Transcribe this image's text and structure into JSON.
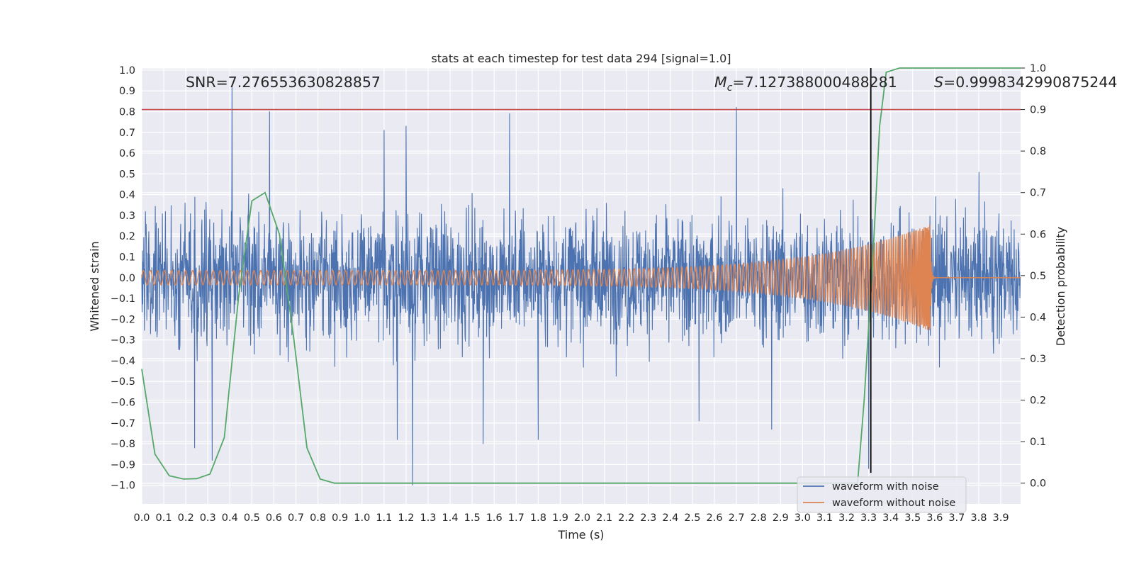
{
  "chart_data": {
    "type": "line",
    "title": "stats at each timestep for test data 294 [signal=1.0]",
    "xlabel": "Time (s)",
    "ylabel_left": "Whitened strain",
    "ylabel_right": "Detection probability",
    "xlim": [
      0.0,
      3.99
    ],
    "ylim_left": [
      -1.09,
      1.01
    ],
    "ylim_right": [
      -0.05,
      1.0
    ],
    "grid": true,
    "x_ticks": [
      "0.0",
      "0.1",
      "0.2",
      "0.3",
      "0.4",
      "0.5",
      "0.6",
      "0.7",
      "0.8",
      "0.9",
      "1.0",
      "1.1",
      "1.2",
      "1.3",
      "1.4",
      "1.5",
      "1.6",
      "1.7",
      "1.8",
      "1.9",
      "2.0",
      "2.1",
      "2.2",
      "2.3",
      "2.4",
      "2.5",
      "2.6",
      "2.7",
      "2.8",
      "2.9",
      "3.0",
      "3.1",
      "3.2",
      "3.3",
      "3.4",
      "3.5",
      "3.6",
      "3.7",
      "3.8",
      "3.9"
    ],
    "y_ticks_left": [
      "1.0",
      "0.9",
      "0.8",
      "0.7",
      "0.6",
      "0.5",
      "0.4",
      "0.3",
      "0.2",
      "0.1",
      "0.0",
      "−0.1",
      "−0.2",
      "−0.3",
      "−0.4",
      "−0.5",
      "−0.6",
      "−0.7",
      "−0.8",
      "−0.9",
      "−1.0"
    ],
    "y_ticks_right": [
      "1.0",
      "0.9",
      "0.8",
      "0.7",
      "0.6",
      "0.5",
      "0.4",
      "0.3",
      "0.2",
      "0.1",
      "0.0"
    ],
    "threshold_line": {
      "y_right": 0.9,
      "color": "#c44e52"
    },
    "vertical_marker": {
      "x": 3.31,
      "color": "#000000"
    },
    "annotations": {
      "snr": "SNR=7.276553630828857",
      "mc_symbol": "M",
      "mc_sub": "c",
      "mc_value": "=7.127388000488281",
      "s_symbol": "S",
      "s_value": "=0.9998342990875244"
    },
    "series": [
      {
        "name": "waveform with noise",
        "color": "#4c72b0",
        "axis": "left",
        "note": "dense whitened noise, amplitude roughly ±0.3 with spikes to ±0.9",
        "spikes": [
          [
            0.41,
            0.92
          ],
          [
            0.58,
            0.8
          ],
          [
            1.67,
            0.79
          ],
          [
            2.7,
            0.82
          ],
          [
            1.1,
            0.71
          ],
          [
            1.2,
            0.73
          ],
          [
            0.24,
            -0.82
          ],
          [
            0.32,
            -0.88
          ],
          [
            1.23,
            -1.0
          ],
          [
            1.16,
            -0.78
          ],
          [
            1.55,
            -0.8
          ],
          [
            1.8,
            -0.78
          ],
          [
            2.86,
            -0.73
          ],
          [
            3.3,
            -0.92
          ],
          [
            2.53,
            -0.69
          ]
        ]
      },
      {
        "name": "waveform without noise",
        "color": "#dd8452",
        "axis": "left",
        "chirp": {
          "start": 0.0,
          "merger": 3.58,
          "end": 3.99,
          "amp_start": 0.035,
          "amp_peak": 0.26
        }
      },
      {
        "name": "detection probability",
        "color": "#55a868",
        "axis": "right",
        "x": [
          0.0,
          0.06,
          0.125,
          0.19,
          0.25,
          0.31,
          0.375,
          0.44,
          0.5,
          0.56,
          0.625,
          0.69,
          0.75,
          0.81,
          0.875,
          1.0,
          3.25,
          3.28,
          3.32,
          3.35,
          3.38,
          3.44,
          3.99
        ],
        "y": [
          0.275,
          0.07,
          0.018,
          0.01,
          0.011,
          0.022,
          0.11,
          0.45,
          0.68,
          0.7,
          0.6,
          0.35,
          0.085,
          0.01,
          0.0,
          0.0,
          0.0,
          0.2,
          0.55,
          0.86,
          0.99,
          1.0,
          1.0
        ]
      }
    ],
    "legend": {
      "position": "lower-right",
      "entries": [
        {
          "label": "waveform with noise",
          "color": "#4c72b0"
        },
        {
          "label": "waveform without noise",
          "color": "#dd8452"
        }
      ]
    }
  }
}
